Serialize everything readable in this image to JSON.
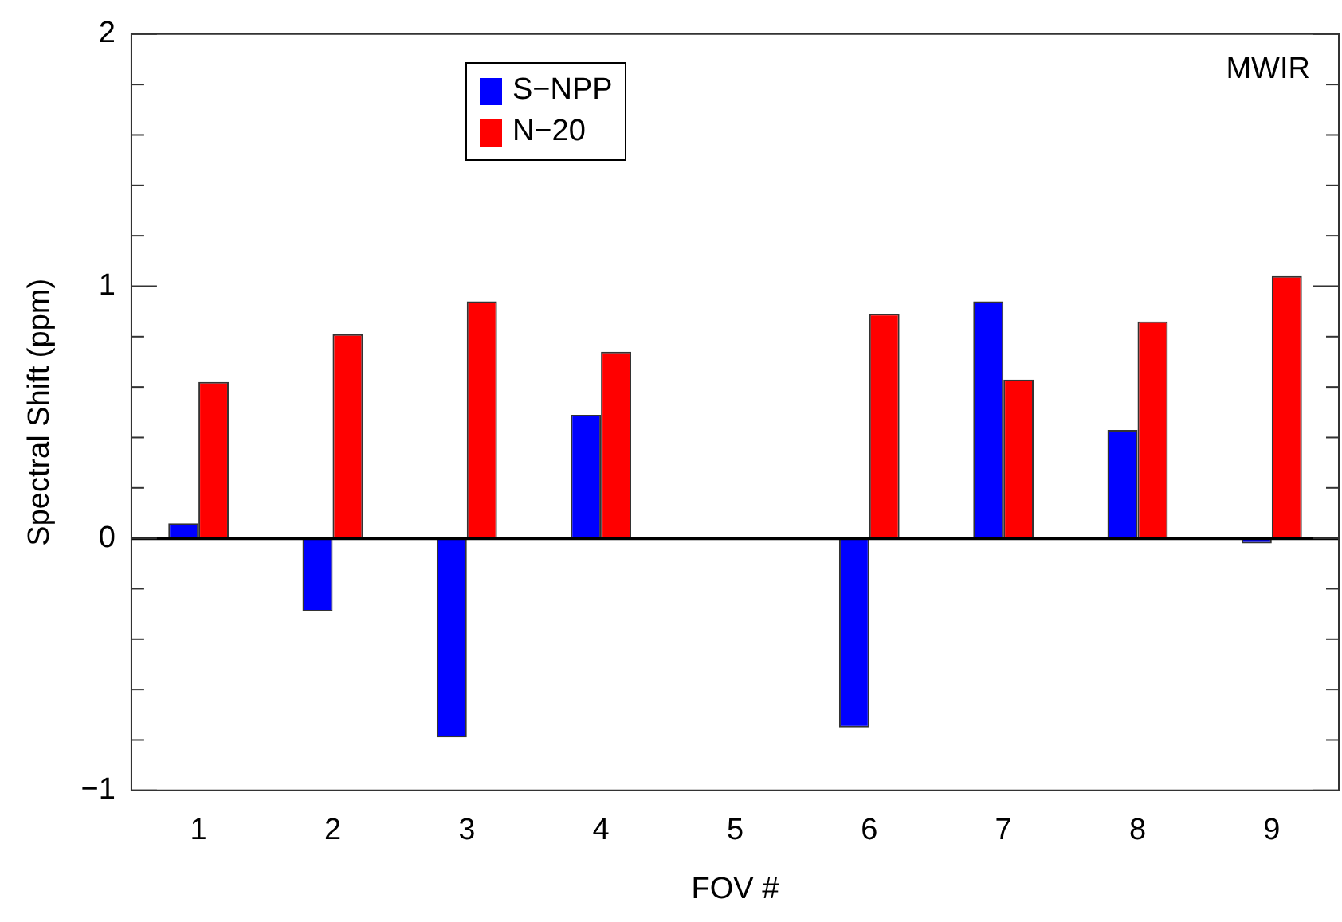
{
  "chart_data": {
    "type": "bar",
    "xlabel": "FOV #",
    "ylabel": "Spectral Shift (ppm)",
    "categories": [
      "1",
      "2",
      "3",
      "4",
      "5",
      "6",
      "7",
      "8",
      "9"
    ],
    "series": [
      {
        "name": "S−NPP",
        "color": "#0000ff",
        "values": [
          0.06,
          -0.29,
          -0.79,
          0.49,
          null,
          -0.75,
          0.94,
          0.43,
          -0.02
        ]
      },
      {
        "name": "N−20",
        "color": "#ff0000",
        "values": [
          0.62,
          0.81,
          0.94,
          0.74,
          null,
          0.89,
          0.63,
          0.86,
          1.04
        ]
      }
    ],
    "ylim": [
      -1,
      2
    ],
    "yticks": [
      -1,
      {
        "value": -0.8,
        "label": null
      },
      {
        "value": -0.6,
        "label": null
      },
      {
        "value": -0.4,
        "label": null
      },
      {
        "value": -0.2,
        "label": null
      },
      0,
      {
        "value": 0.2,
        "label": null
      },
      {
        "value": 0.4,
        "label": null
      },
      {
        "value": 0.6,
        "label": null
      },
      {
        "value": 0.8,
        "label": null
      },
      1,
      {
        "value": 1.2,
        "label": null
      },
      {
        "value": 1.4,
        "label": null
      },
      {
        "value": 1.6,
        "label": null
      },
      {
        "value": 1.8,
        "label": null
      },
      2
    ],
    "ref_lines": [
      {
        "axis": "y",
        "value": 0,
        "color": "#000000"
      }
    ],
    "annotations": [
      "MWIR"
    ],
    "grid": false,
    "legend": "top left"
  }
}
